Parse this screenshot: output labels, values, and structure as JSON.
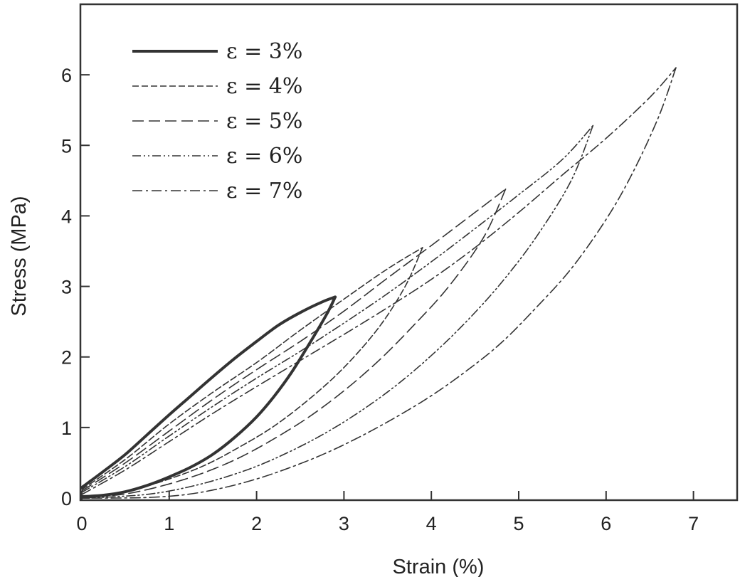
{
  "chart_data": {
    "type": "line",
    "title": "",
    "xlabel": "Strain (%)",
    "ylabel": "Stress (MPa)",
    "xlim": [
      0,
      7.5
    ],
    "ylim": [
      0,
      7.0
    ],
    "xticks": [
      0,
      1,
      2,
      3,
      4,
      5,
      6,
      7
    ],
    "yticks": [
      0,
      1,
      2,
      3,
      4,
      5,
      6
    ],
    "grid": false,
    "legend_position": "top-left",
    "series": [
      {
        "name": "ε = 3%",
        "style": "solid",
        "loading": {
          "x": [
            0,
            0.25,
            0.5,
            0.75,
            1.0,
            1.25,
            1.5,
            1.75,
            2.0,
            2.25,
            2.5,
            2.75,
            2.9
          ],
          "y": [
            0.15,
            0.38,
            0.62,
            0.9,
            1.18,
            1.45,
            1.72,
            1.98,
            2.22,
            2.45,
            2.63,
            2.78,
            2.85
          ]
        },
        "unloading": {
          "x": [
            2.9,
            2.8,
            2.6,
            2.4,
            2.2,
            2.0,
            1.75,
            1.5,
            1.25,
            1.0,
            0.75,
            0.5,
            0.25,
            0.0
          ],
          "y": [
            2.85,
            2.6,
            2.18,
            1.78,
            1.44,
            1.15,
            0.86,
            0.62,
            0.44,
            0.3,
            0.18,
            0.09,
            0.04,
            0.02
          ]
        }
      },
      {
        "name": "ε = 4%",
        "style": "dashed",
        "loading": {
          "x": [
            0,
            0.5,
            1.0,
            1.5,
            2.0,
            2.5,
            3.0,
            3.5,
            3.9
          ],
          "y": [
            0.12,
            0.55,
            1.05,
            1.5,
            1.92,
            2.38,
            2.82,
            3.25,
            3.55
          ]
        },
        "unloading": {
          "x": [
            3.9,
            3.7,
            3.4,
            3.0,
            2.6,
            2.2,
            1.8,
            1.4,
            1.0,
            0.6,
            0.3,
            0.0
          ],
          "y": [
            3.55,
            3.0,
            2.42,
            1.85,
            1.4,
            1.02,
            0.72,
            0.46,
            0.27,
            0.12,
            0.05,
            0.02
          ]
        }
      },
      {
        "name": "ε = 5%",
        "style": "long-dash",
        "loading": {
          "x": [
            0,
            0.5,
            1.0,
            1.5,
            2.0,
            2.5,
            3.0,
            3.5,
            4.0,
            4.5,
            4.85
          ],
          "y": [
            0.1,
            0.5,
            0.95,
            1.4,
            1.82,
            2.22,
            2.65,
            3.12,
            3.58,
            4.05,
            4.38
          ]
        },
        "unloading": {
          "x": [
            4.85,
            4.6,
            4.2,
            3.8,
            3.4,
            3.0,
            2.6,
            2.2,
            1.8,
            1.4,
            1.0,
            0.6,
            0.3,
            0.0
          ],
          "y": [
            4.38,
            3.7,
            3.0,
            2.45,
            1.95,
            1.52,
            1.15,
            0.84,
            0.57,
            0.36,
            0.2,
            0.08,
            0.03,
            0.01
          ]
        }
      },
      {
        "name": "ε = 6%",
        "style": "dash-dot-dot",
        "loading": {
          "x": [
            0,
            0.5,
            1.0,
            1.5,
            2.0,
            2.5,
            3.0,
            3.5,
            4.0,
            4.5,
            5.0,
            5.5,
            5.85
          ],
          "y": [
            0.08,
            0.45,
            0.88,
            1.3,
            1.7,
            2.08,
            2.48,
            2.9,
            3.35,
            3.82,
            4.3,
            4.8,
            5.28
          ]
        },
        "unloading": {
          "x": [
            5.85,
            5.6,
            5.2,
            4.8,
            4.4,
            4.0,
            3.6,
            3.2,
            2.8,
            2.4,
            2.0,
            1.6,
            1.2,
            0.8,
            0.4,
            0.0
          ],
          "y": [
            5.28,
            4.5,
            3.7,
            3.05,
            2.5,
            2.02,
            1.6,
            1.24,
            0.93,
            0.67,
            0.45,
            0.28,
            0.15,
            0.06,
            0.02,
            0.0
          ]
        }
      },
      {
        "name": "ε = 7%",
        "style": "dash-dot",
        "loading": {
          "x": [
            0,
            0.5,
            1.0,
            1.5,
            2.0,
            2.5,
            3.0,
            3.5,
            4.0,
            4.5,
            5.0,
            5.5,
            6.0,
            6.5,
            6.8
          ],
          "y": [
            0.05,
            0.4,
            0.8,
            1.2,
            1.58,
            1.95,
            2.32,
            2.7,
            3.1,
            3.55,
            4.05,
            4.58,
            5.1,
            5.68,
            6.1
          ]
        },
        "unloading": {
          "x": [
            6.8,
            6.6,
            6.3,
            6.0,
            5.6,
            5.2,
            4.8,
            4.4,
            4.0,
            3.6,
            3.2,
            2.8,
            2.4,
            2.0,
            1.6,
            1.2,
            0.8,
            0.4,
            0.0
          ],
          "y": [
            6.1,
            5.4,
            4.6,
            3.95,
            3.25,
            2.7,
            2.2,
            1.8,
            1.45,
            1.15,
            0.88,
            0.64,
            0.44,
            0.27,
            0.14,
            0.05,
            0.01,
            0.0,
            0.0
          ]
        }
      }
    ]
  }
}
